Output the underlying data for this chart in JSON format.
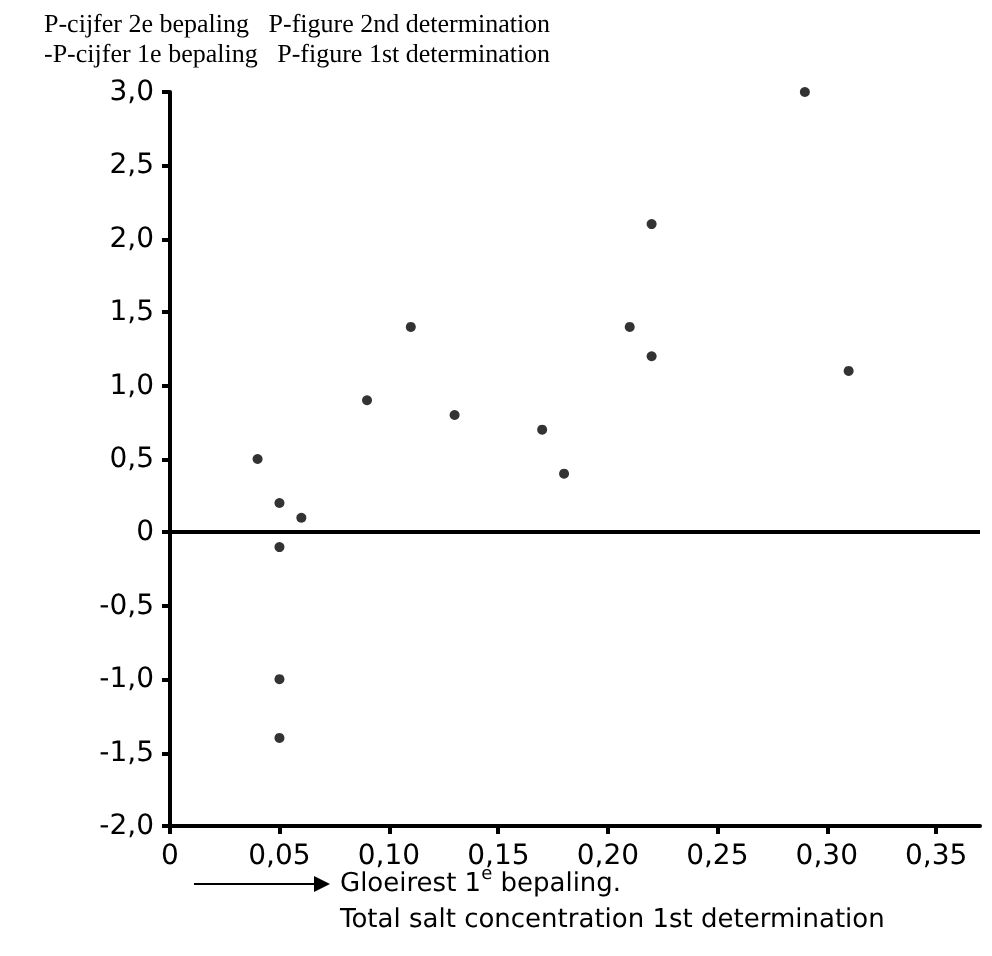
{
  "chart_data": {
    "type": "scatter",
    "ylabel": "P-cijfer 2e bepaling   P-figure 2nd determination\n-P-cijfer 1e bepaling   P-figure 1st determination",
    "xlabel": "Gloeirest 1$^{e}$ bepaling.\nTotal salt concentration 1st determination",
    "x": [
      0.04,
      0.05,
      0.06,
      0.09,
      0.11,
      0.13,
      0.17,
      0.18,
      0.21,
      0.22,
      0.22,
      0.29,
      0.31,
      0.05,
      0.05,
      0.05
    ],
    "series": [
      {
        "color": "#000000",
        "values": [
          0.5,
          0.2,
          0.1,
          0.9,
          1.4,
          0.8,
          0.7,
          0.4,
          1.4,
          2.1,
          1.2,
          3.0,
          1.1,
          -0.1,
          -1.0,
          -1.4
        ]
      }
    ],
    "xlim": [
      0,
      0.37
    ],
    "xticks": [
      0,
      {
        "value": 0.05,
        "label": "0,05"
      },
      {
        "value": 0.1,
        "label": "0,10"
      },
      {
        "value": 0.15,
        "label": "0,15"
      },
      {
        "value": 0.2,
        "label": "0,20"
      },
      {
        "value": 0.25,
        "label": "0,25"
      },
      {
        "value": 0.3,
        "label": "0,30"
      },
      {
        "value": 0.35,
        "label": "0,35"
      }
    ],
    "ylim": [
      -2.0,
      3.0
    ],
    "yticks": [
      {
        "value": -2,
        "label": "-2,0"
      },
      {
        "value": -1.5,
        "label": "-1,5"
      },
      {
        "value": -1,
        "label": "-1,0"
      },
      {
        "value": -0.5,
        "label": "-0,5"
      },
      0,
      {
        "value": 0.5,
        "label": "0,5"
      },
      {
        "value": 1,
        "label": "1,0"
      },
      {
        "value": 1.5,
        "label": "1,5"
      },
      {
        "value": 2,
        "label": "2,0"
      },
      {
        "value": 2.5,
        "label": "2,5"
      },
      {
        "value": 3,
        "label": "3,0"
      }
    ],
    "ref_lines": [
      {
        "axis": "y",
        "value": 0,
        "color": "#000000",
        "line_style": "solid"
      }
    ],
    "grid": false,
    "marker": "circle"
  }
}
